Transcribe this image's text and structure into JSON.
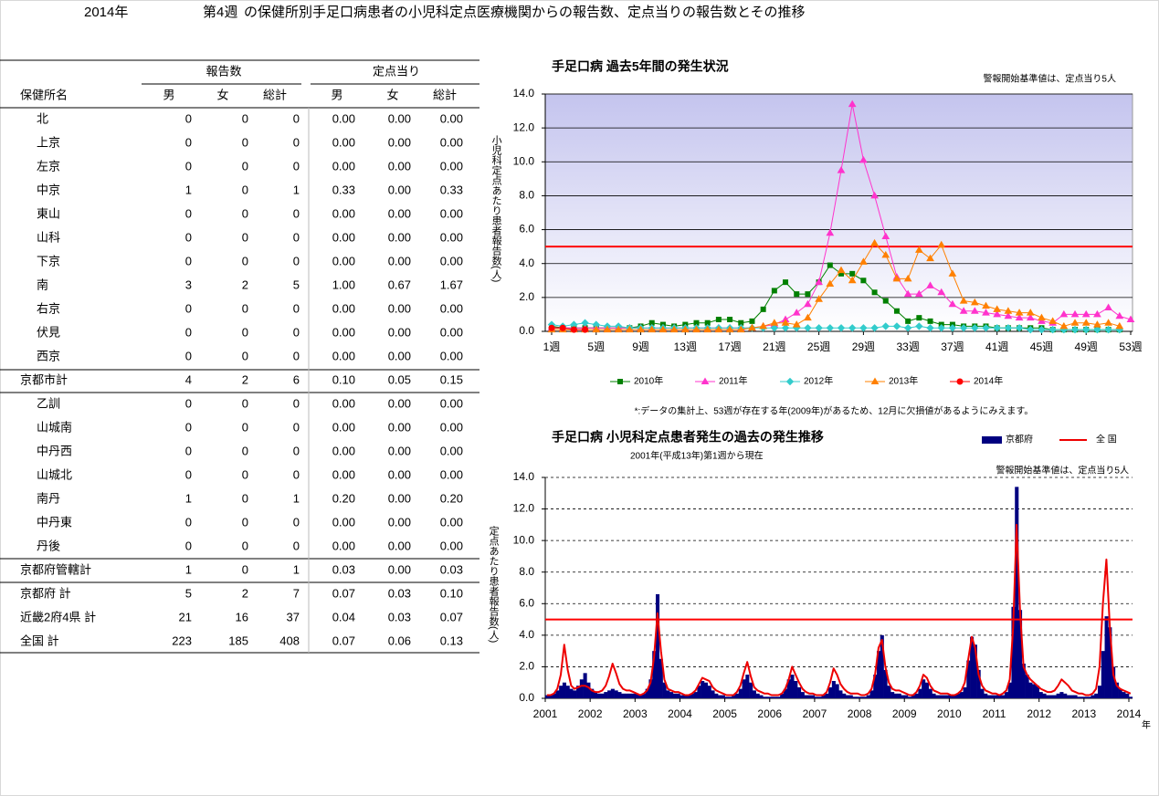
{
  "header": {
    "year": "2014年",
    "week": "第4週",
    "title": "の保健所別手足口病患者の小児科定点医療機関からの報告数、定点当りの報告数とその推移"
  },
  "table": {
    "groups": [
      "報告数",
      "定点当り"
    ],
    "columns": [
      "保健所名",
      "男",
      "女",
      "総計",
      "男",
      "女",
      "総計"
    ],
    "rows": [
      [
        "北",
        "0",
        "0",
        "0",
        "0.00",
        "0.00",
        "0.00"
      ],
      [
        "上京",
        "0",
        "0",
        "0",
        "0.00",
        "0.00",
        "0.00"
      ],
      [
        "左京",
        "0",
        "0",
        "0",
        "0.00",
        "0.00",
        "0.00"
      ],
      [
        "中京",
        "1",
        "0",
        "1",
        "0.33",
        "0.00",
        "0.33"
      ],
      [
        "東山",
        "0",
        "0",
        "0",
        "0.00",
        "0.00",
        "0.00"
      ],
      [
        "山科",
        "0",
        "0",
        "0",
        "0.00",
        "0.00",
        "0.00"
      ],
      [
        "下京",
        "0",
        "0",
        "0",
        "0.00",
        "0.00",
        "0.00"
      ],
      [
        "南",
        "3",
        "2",
        "5",
        "1.00",
        "0.67",
        "1.67"
      ],
      [
        "右京",
        "0",
        "0",
        "0",
        "0.00",
        "0.00",
        "0.00"
      ],
      [
        "伏見",
        "0",
        "0",
        "0",
        "0.00",
        "0.00",
        "0.00"
      ],
      [
        "西京",
        "0",
        "0",
        "0",
        "0.00",
        "0.00",
        "0.00"
      ],
      [
        "京都市計",
        "4",
        "2",
        "6",
        "0.10",
        "0.05",
        "0.15"
      ],
      [
        "乙訓",
        "0",
        "0",
        "0",
        "0.00",
        "0.00",
        "0.00"
      ],
      [
        "山城南",
        "0",
        "0",
        "0",
        "0.00",
        "0.00",
        "0.00"
      ],
      [
        "中丹西",
        "0",
        "0",
        "0",
        "0.00",
        "0.00",
        "0.00"
      ],
      [
        "山城北",
        "0",
        "0",
        "0",
        "0.00",
        "0.00",
        "0.00"
      ],
      [
        "南丹",
        "1",
        "0",
        "1",
        "0.20",
        "0.00",
        "0.20"
      ],
      [
        "中丹東",
        "0",
        "0",
        "0",
        "0.00",
        "0.00",
        "0.00"
      ],
      [
        "丹後",
        "0",
        "0",
        "0",
        "0.00",
        "0.00",
        "0.00"
      ],
      [
        "京都府管轄計",
        "1",
        "0",
        "1",
        "0.03",
        "0.00",
        "0.03"
      ],
      [
        "京都府 計",
        "5",
        "2",
        "7",
        "0.07",
        "0.03",
        "0.10"
      ],
      [
        "近畿2府4県 計",
        "21",
        "16",
        "37",
        "0.04",
        "0.03",
        "0.07"
      ],
      [
        "全国 計",
        "223",
        "185",
        "408",
        "0.07",
        "0.06",
        "0.13"
      ]
    ]
  },
  "chart_data": [
    {
      "type": "line",
      "title": "手足口病 過去5年間の発生状況",
      "annotation": "警報開始基準値は、定点当り5人",
      "ylabel": "小児科定点あたり患者報告数(人)",
      "footnote": "*:データの集計上、53週が存在する年(2009年)があるため、12月に欠損値があるようにみえます。",
      "categories": [
        "1週",
        null,
        null,
        null,
        "5週",
        null,
        null,
        null,
        "9週",
        null,
        null,
        null,
        "13週",
        null,
        null,
        null,
        "17週",
        null,
        null,
        null,
        "21週",
        null,
        null,
        null,
        "25週",
        null,
        null,
        null,
        "29週",
        null,
        null,
        null,
        "33週",
        null,
        null,
        null,
        "37週",
        null,
        null,
        null,
        "41週",
        null,
        null,
        null,
        "45週",
        null,
        null,
        null,
        "49週",
        null,
        null,
        null,
        "53週"
      ],
      "ylim": [
        0,
        14
      ],
      "yticks": [
        {
          "value": 0,
          "label": "0.0"
        },
        {
          "value": 2,
          "label": "2.0"
        },
        {
          "value": 4,
          "label": "4.0"
        },
        {
          "value": 6,
          "label": "6.0"
        },
        {
          "value": 8,
          "label": "8.0"
        },
        {
          "value": 10,
          "label": "10.0"
        },
        {
          "value": 12,
          "label": "12.0"
        },
        {
          "value": 14,
          "label": "14.0"
        }
      ],
      "grid": true,
      "grid_style": "solid",
      "threshold": 5,
      "threshold_color": "#ff0000",
      "legend": "bottom",
      "series": [
        {
          "name": "2010年",
          "color": "#008000",
          "marker": "square",
          "values": [
            0.3,
            0.2,
            0.2,
            0.2,
            0.2,
            0.2,
            0.2,
            0.2,
            0.3,
            0.5,
            0.4,
            0.3,
            0.4,
            0.5,
            0.5,
            0.7,
            0.7,
            0.5,
            0.6,
            1.3,
            2.4,
            2.9,
            2.2,
            2.2,
            2.9,
            3.9,
            3.4,
            3.4,
            3.0,
            2.3,
            1.8,
            1.2,
            0.6,
            0.8,
            0.6,
            0.4,
            0.4,
            0.3,
            0.3,
            0.3,
            0.2,
            0.2,
            0.2,
            0.2,
            0.2,
            0.1,
            0.1,
            0.1,
            0.1,
            0.1,
            0.1,
            0.1,
            null
          ]
        },
        {
          "name": "2011年",
          "color": "#ff33cc",
          "marker": "triangle",
          "values": [
            0.2,
            0.2,
            0.2,
            0.2,
            0.2,
            0.2,
            0.2,
            0.2,
            0.2,
            0.2,
            0.2,
            0.2,
            0.2,
            0.2,
            0.2,
            0.2,
            0.2,
            0.2,
            0.2,
            0.3,
            0.4,
            0.7,
            1.1,
            1.6,
            2.9,
            5.8,
            9.5,
            13.4,
            10.1,
            8.0,
            5.6,
            3.2,
            2.2,
            2.2,
            2.7,
            2.3,
            1.6,
            1.2,
            1.2,
            1.1,
            1.0,
            0.9,
            0.8,
            0.8,
            0.6,
            0.5,
            1.0,
            1.0,
            1.0,
            1.0,
            1.4,
            0.9,
            0.7
          ]
        },
        {
          "name": "2012年",
          "color": "#33cccc",
          "marker": "diamond",
          "values": [
            0.4,
            0.3,
            0.4,
            0.5,
            0.4,
            0.3,
            0.3,
            0.2,
            0.2,
            0.2,
            0.2,
            0.2,
            0.2,
            0.2,
            0.2,
            0.2,
            0.2,
            0.2,
            0.2,
            0.2,
            0.2,
            0.2,
            0.2,
            0.2,
            0.2,
            0.2,
            0.2,
            0.2,
            0.2,
            0.2,
            0.3,
            0.3,
            0.2,
            0.3,
            0.2,
            0.2,
            0.2,
            0.2,
            0.2,
            0.2,
            0.2,
            0.2,
            0.2,
            0.1,
            0.1,
            0.1,
            0.1,
            0.1,
            0.1,
            0.1,
            0.1,
            0.1,
            null
          ]
        },
        {
          "name": "2013年",
          "color": "#ff8000",
          "marker": "triangle",
          "values": [
            0.1,
            0.1,
            0.1,
            0.1,
            0.1,
            0.1,
            0.1,
            0.1,
            0.1,
            0.1,
            0.1,
            0.1,
            0.1,
            0.1,
            0.1,
            0.1,
            0.1,
            0.1,
            0.2,
            0.3,
            0.5,
            0.5,
            0.4,
            0.8,
            1.9,
            2.8,
            3.6,
            3.0,
            4.1,
            5.2,
            4.5,
            3.1,
            3.1,
            4.8,
            4.3,
            5.1,
            3.4,
            1.8,
            1.7,
            1.5,
            1.3,
            1.2,
            1.1,
            1.1,
            0.8,
            0.6,
            0.3,
            0.5,
            0.5,
            0.4,
            0.5,
            0.3,
            null
          ]
        },
        {
          "name": "2014年",
          "color": "#ff0000",
          "marker": "circle",
          "values": [
            0.2,
            0.2,
            0.1,
            0.1,
            null,
            null,
            null,
            null,
            null,
            null,
            null,
            null,
            null,
            null,
            null,
            null,
            null,
            null,
            null,
            null,
            null,
            null,
            null,
            null,
            null,
            null,
            null,
            null,
            null,
            null,
            null,
            null,
            null,
            null,
            null,
            null,
            null,
            null,
            null,
            null,
            null,
            null,
            null,
            null,
            null,
            null,
            null,
            null,
            null,
            null,
            null,
            null,
            null
          ]
        }
      ]
    },
    {
      "type": "bar",
      "title": "手足口病 小児科定点患者発生の過去の発生推移",
      "subtitle": "2001年(平成13年)第1週から現在",
      "annotation": "警報開始基準値は、定点当り5人",
      "ylabel": "定点あたり患者報告数(人)",
      "xlabel": "年",
      "categories": [
        "2001",
        null,
        null,
        null,
        null,
        null,
        null,
        null,
        null,
        null,
        null,
        null,
        null,
        "2002",
        null,
        null,
        null,
        null,
        null,
        null,
        null,
        null,
        null,
        null,
        null,
        null,
        "2003",
        null,
        null,
        null,
        null,
        null,
        null,
        null,
        null,
        null,
        null,
        null,
        null,
        "2004",
        null,
        null,
        null,
        null,
        null,
        null,
        null,
        null,
        null,
        null,
        null,
        null,
        "2005",
        null,
        null,
        null,
        null,
        null,
        null,
        null,
        null,
        null,
        null,
        null,
        null,
        "2006",
        null,
        null,
        null,
        null,
        null,
        null,
        null,
        null,
        null,
        null,
        null,
        null,
        "2007",
        null,
        null,
        null,
        null,
        null,
        null,
        null,
        null,
        null,
        null,
        null,
        null,
        "2008",
        null,
        null,
        null,
        null,
        null,
        null,
        null,
        null,
        null,
        null,
        null,
        null,
        "2009",
        null,
        null,
        null,
        null,
        null,
        null,
        null,
        null,
        null,
        null,
        null,
        null,
        "2010",
        null,
        null,
        null,
        null,
        null,
        null,
        null,
        null,
        null,
        null,
        null,
        null,
        "2011",
        null,
        null,
        null,
        null,
        null,
        null,
        null,
        null,
        null,
        null,
        null,
        null,
        "2012",
        null,
        null,
        null,
        null,
        null,
        null,
        null,
        null,
        null,
        null,
        null,
        null,
        "2013",
        null,
        null,
        null,
        null,
        null,
        null,
        null,
        null,
        null,
        null,
        null,
        null,
        "2014"
      ],
      "ylim": [
        0,
        14
      ],
      "yticks": [
        {
          "value": 0,
          "label": "0.0"
        },
        {
          "value": 2,
          "label": "2.0"
        },
        {
          "value": 4,
          "label": "4.0"
        },
        {
          "value": 6,
          "label": "6.0"
        },
        {
          "value": 8,
          "label": "8.0"
        },
        {
          "value": 10,
          "label": "10.0"
        },
        {
          "value": 12,
          "label": "12.0"
        },
        {
          "value": 14,
          "label": "14.0"
        }
      ],
      "grid": true,
      "grid_style": "dashed",
      "threshold": 5,
      "threshold_color": "#ff0000",
      "legend": "top-right",
      "series": [
        {
          "name": "京都府",
          "type": "bar",
          "color": "#000080",
          "values": [
            0.2,
            0.2,
            0.3,
            0.5,
            0.8,
            1.0,
            0.8,
            0.6,
            0.5,
            0.8,
            1.2,
            1.6,
            1.0,
            0.6,
            0.4,
            0.3,
            0.3,
            0.4,
            0.5,
            0.6,
            0.5,
            0.4,
            0.3,
            0.3,
            0.3,
            0.3,
            0.3,
            0.2,
            0.3,
            0.6,
            1.2,
            3.0,
            6.6,
            2.5,
            1.0,
            0.5,
            0.4,
            0.3,
            0.3,
            0.2,
            0.2,
            0.2,
            0.3,
            0.4,
            0.8,
            1.1,
            1.0,
            0.8,
            0.5,
            0.3,
            0.2,
            0.2,
            0.1,
            0.1,
            0.2,
            0.3,
            0.6,
            1.2,
            1.5,
            1.0,
            0.5,
            0.3,
            0.2,
            0.1,
            0.1,
            0.1,
            0.1,
            0.1,
            0.3,
            0.6,
            1.2,
            1.5,
            1.1,
            0.7,
            0.4,
            0.2,
            0.2,
            0.2,
            0.1,
            0.1,
            0.2,
            0.3,
            0.7,
            1.1,
            0.9,
            0.5,
            0.3,
            0.2,
            0.2,
            0.1,
            0.1,
            0.1,
            0.1,
            0.2,
            0.5,
            1.5,
            3.0,
            4.0,
            1.8,
            0.8,
            0.4,
            0.3,
            0.3,
            0.2,
            0.2,
            0.1,
            0.2,
            0.3,
            0.6,
            1.2,
            1.0,
            0.6,
            0.3,
            0.2,
            0.2,
            0.2,
            0.2,
            0.2,
            0.2,
            0.3,
            0.4,
            0.7,
            2.4,
            3.9,
            3.4,
            1.8,
            0.6,
            0.3,
            0.2,
            0.2,
            0.2,
            0.2,
            0.2,
            0.4,
            1.0,
            5.8,
            13.4,
            5.6,
            2.2,
            1.5,
            1.0,
            0.9,
            0.8,
            0.4,
            0.3,
            0.2,
            0.2,
            0.2,
            0.3,
            0.4,
            0.3,
            0.2,
            0.2,
            0.2,
            0.1,
            0.1,
            0.1,
            0.1,
            0.2,
            0.3,
            0.8,
            3.0,
            5.2,
            4.5,
            2.0,
            1.0,
            0.6,
            0.4,
            0.3,
            0.1
          ]
        },
        {
          "name": "全 国",
          "type": "line",
          "color": "#ee0000",
          "values": [
            0.2,
            0.2,
            0.3,
            0.6,
            1.5,
            3.4,
            1.8,
            0.8,
            0.6,
            0.7,
            0.8,
            0.8,
            0.7,
            0.5,
            0.4,
            0.4,
            0.5,
            0.8,
            1.4,
            2.2,
            1.6,
            0.9,
            0.6,
            0.5,
            0.5,
            0.4,
            0.3,
            0.2,
            0.3,
            0.5,
            1.0,
            2.6,
            5.4,
            3.0,
            1.2,
            0.6,
            0.5,
            0.4,
            0.4,
            0.3,
            0.2,
            0.2,
            0.3,
            0.5,
            0.9,
            1.3,
            1.2,
            1.1,
            0.7,
            0.5,
            0.4,
            0.3,
            0.2,
            0.2,
            0.2,
            0.4,
            0.8,
            1.6,
            2.3,
            1.4,
            0.7,
            0.5,
            0.4,
            0.3,
            0.3,
            0.2,
            0.2,
            0.2,
            0.3,
            0.6,
            1.2,
            2.0,
            1.5,
            1.0,
            0.6,
            0.4,
            0.3,
            0.3,
            0.2,
            0.2,
            0.2,
            0.4,
            1.0,
            1.9,
            1.5,
            0.9,
            0.6,
            0.4,
            0.3,
            0.3,
            0.3,
            0.2,
            0.2,
            0.3,
            0.6,
            1.5,
            3.2,
            3.7,
            2.0,
            1.0,
            0.6,
            0.5,
            0.5,
            0.4,
            0.3,
            0.2,
            0.2,
            0.4,
            0.8,
            1.5,
            1.3,
            0.8,
            0.5,
            0.4,
            0.3,
            0.3,
            0.3,
            0.2,
            0.2,
            0.3,
            0.5,
            1.0,
            2.5,
            3.9,
            3.2,
            1.5,
            0.8,
            0.5,
            0.4,
            0.3,
            0.3,
            0.2,
            0.3,
            0.5,
            1.2,
            4.5,
            11.0,
            5.5,
            2.0,
            1.5,
            1.2,
            1.0,
            0.8,
            0.6,
            0.5,
            0.4,
            0.4,
            0.5,
            0.8,
            1.2,
            1.0,
            0.8,
            0.5,
            0.4,
            0.3,
            0.3,
            0.2,
            0.2,
            0.3,
            0.6,
            2.0,
            6.0,
            8.8,
            4.5,
            1.5,
            0.8,
            0.6,
            0.5,
            0.4,
            0.3
          ]
        }
      ]
    }
  ]
}
